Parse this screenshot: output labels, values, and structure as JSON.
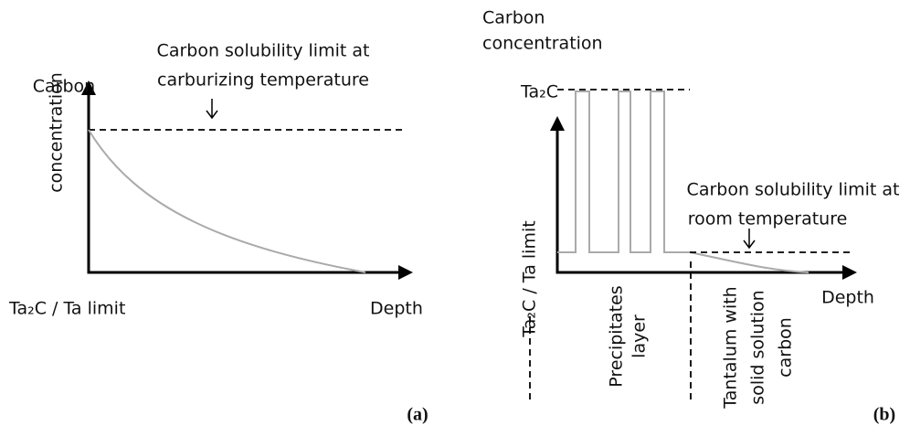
{
  "panels": [
    {
      "label": "(a)",
      "y_axis_label": [
        "Carbon",
        "concentration"
      ],
      "annotation": [
        "Carbon solubility limit at",
        "carburizing temperature"
      ],
      "origin_label": "Ta₂C / Ta limit",
      "x_axis_label": "Depth"
    },
    {
      "label": "(b)",
      "y_axis_label": [
        "Carbon",
        "concentration"
      ],
      "level_label": "Ta₂C",
      "annotation": [
        "Carbon solubility limit at",
        "room temperature"
      ],
      "origin_label": "Ta₂C / Ta limit",
      "x_axis_label": "Depth",
      "region_labels": [
        [
          "Precipitates",
          "layer"
        ],
        [
          "Tantalum with",
          "solid solution",
          "carbon"
        ]
      ]
    }
  ]
}
